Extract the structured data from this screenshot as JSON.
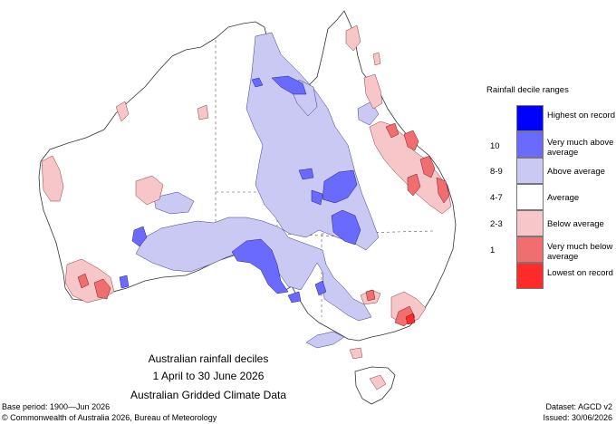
{
  "title_lines": [
    "Australian rainfall deciles",
    "1 April to 30 June 2026",
    "Australian Gridded Climate Data"
  ],
  "base_period": "Base period: 1900—Jun 2026",
  "copyright": "© Commonwealth of Australia 2026, Bureau of Meteorology",
  "dataset": "Dataset: AGCD v2",
  "issued": "Issued: 30/06/2026",
  "legend": {
    "title": "Rainfall decile ranges",
    "items": [
      {
        "label": "Highest on record",
        "code": "",
        "color": "#0000ff"
      },
      {
        "label": "Very much above average",
        "code": "10",
        "color": "#6a6aff"
      },
      {
        "label": "Above average",
        "code": "8-9",
        "color": "#c9c9f3"
      },
      {
        "label": "Average",
        "code": "4-7",
        "color": "#ffffff"
      },
      {
        "label": "Below average",
        "code": "2-3",
        "color": "#f7c6c9"
      },
      {
        "label": "Very much below average",
        "code": "1",
        "color": "#f06e70"
      },
      {
        "label": "Lowest on record",
        "code": "",
        "color": "#ff2a2a"
      }
    ]
  }
}
